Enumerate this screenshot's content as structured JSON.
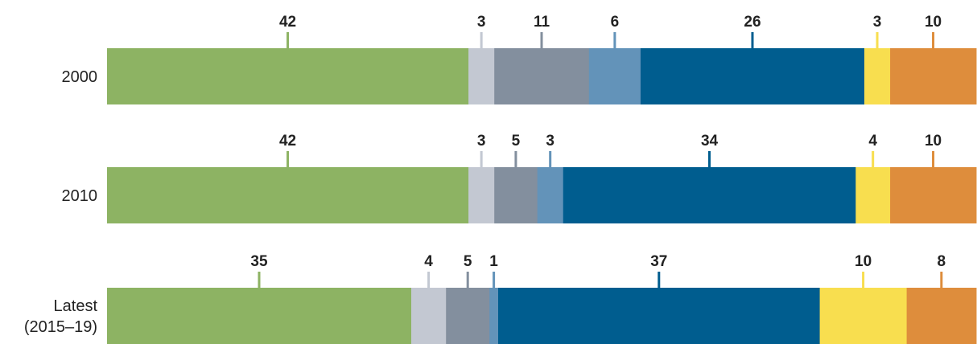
{
  "colors": [
    "#8db363",
    "#c3c8d2",
    "#838f9e",
    "#6393b9",
    "#005d8f",
    "#f8de4f",
    "#de8d3c"
  ],
  "chart_data": {
    "type": "bar",
    "orientation": "horizontal-stacked-100",
    "rows": [
      {
        "label_lines": [
          "2000"
        ],
        "values": [
          42,
          3,
          11,
          6,
          26,
          3,
          10
        ]
      },
      {
        "label_lines": [
          "2010"
        ],
        "values": [
          42,
          3,
          5,
          3,
          34,
          4,
          10
        ]
      },
      {
        "label_lines": [
          "Latest",
          "(2015–19)"
        ],
        "values": [
          35,
          4,
          5,
          1,
          37,
          10,
          8
        ]
      }
    ],
    "title": "",
    "xlabel": "",
    "ylabel": "",
    "legend": "none",
    "grid": false
  }
}
